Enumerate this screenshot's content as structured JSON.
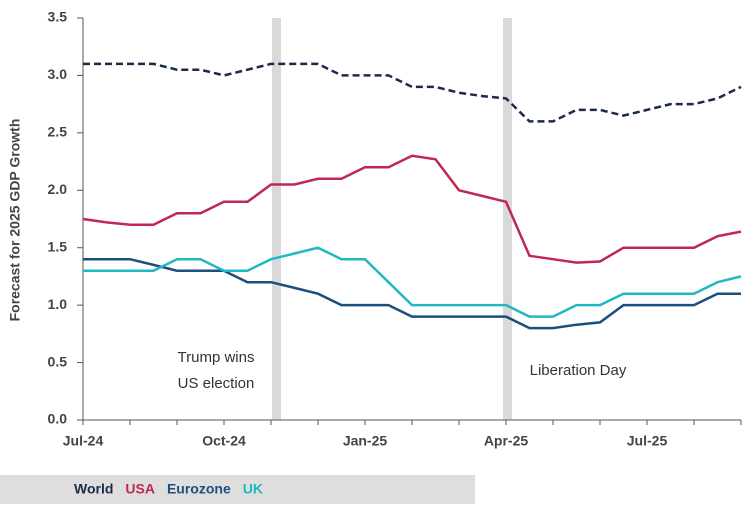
{
  "chart_data": {
    "type": "line",
    "y_label": "Forecast for 2025 GDP Growth",
    "categories": [
      "Jul-24",
      null,
      null,
      null,
      null,
      null,
      "Oct-24",
      null,
      null,
      null,
      null,
      null,
      "Jan-25",
      null,
      null,
      null,
      null,
      null,
      "Apr-25",
      null,
      null,
      null,
      null,
      null,
      "Jul-25",
      null,
      null,
      null,
      null
    ],
    "series": [
      {
        "name": "World",
        "color": "#1c2a4a",
        "dashed": true,
        "values": [
          3.1,
          3.1,
          3.1,
          3.1,
          3.05,
          3.05,
          3.0,
          3.05,
          3.1,
          3.1,
          3.1,
          3.0,
          3.0,
          3.0,
          2.9,
          2.9,
          2.85,
          2.82,
          2.8,
          2.6,
          2.6,
          2.7,
          2.7,
          2.65,
          2.7,
          2.75,
          2.75,
          2.8,
          2.9
        ]
      },
      {
        "name": "USA",
        "color": "#c0284f",
        "values": [
          1.75,
          1.72,
          1.7,
          1.7,
          1.8,
          1.8,
          1.9,
          1.9,
          2.05,
          2.05,
          2.1,
          2.1,
          2.2,
          2.2,
          2.3,
          2.27,
          2.0,
          1.95,
          1.9,
          1.43,
          1.4,
          1.37,
          1.38,
          1.5,
          1.5,
          1.5,
          1.5,
          1.6,
          1.64
        ]
      },
      {
        "name": "Eurozone",
        "color": "#1b4f7c",
        "values": [
          1.4,
          1.4,
          1.4,
          1.35,
          1.3,
          1.3,
          1.3,
          1.2,
          1.2,
          1.15,
          1.1,
          1.0,
          1.0,
          1.0,
          0.9,
          0.9,
          0.9,
          0.9,
          0.9,
          0.8,
          0.8,
          0.83,
          0.85,
          1.0,
          1.0,
          1.0,
          1.0,
          1.1,
          1.1
        ]
      },
      {
        "name": "UK",
        "color": "#22b8c1",
        "values": [
          1.3,
          1.3,
          1.3,
          1.3,
          1.4,
          1.4,
          1.3,
          1.3,
          1.4,
          1.45,
          1.5,
          1.4,
          1.4,
          1.2,
          1.0,
          1.0,
          1.0,
          1.0,
          1.0,
          0.9,
          0.9,
          1.0,
          1.0,
          1.1,
          1.1,
          1.1,
          1.1,
          1.2,
          1.25
        ]
      }
    ],
    "annotations": [
      [
        "Trump wins",
        "US election"
      ],
      [
        "Liberation Day"
      ]
    ],
    "ylim": [
      0,
      3.5
    ],
    "yticks": [
      {
        "value": 0,
        "label": "0.0"
      },
      0.5,
      {
        "value": 1,
        "label": "1.0"
      },
      1.5,
      {
        "value": 2,
        "label": "2.0"
      },
      2.5,
      {
        "value": 3,
        "label": "3.0"
      },
      3.5
    ],
    "grid": false
  }
}
